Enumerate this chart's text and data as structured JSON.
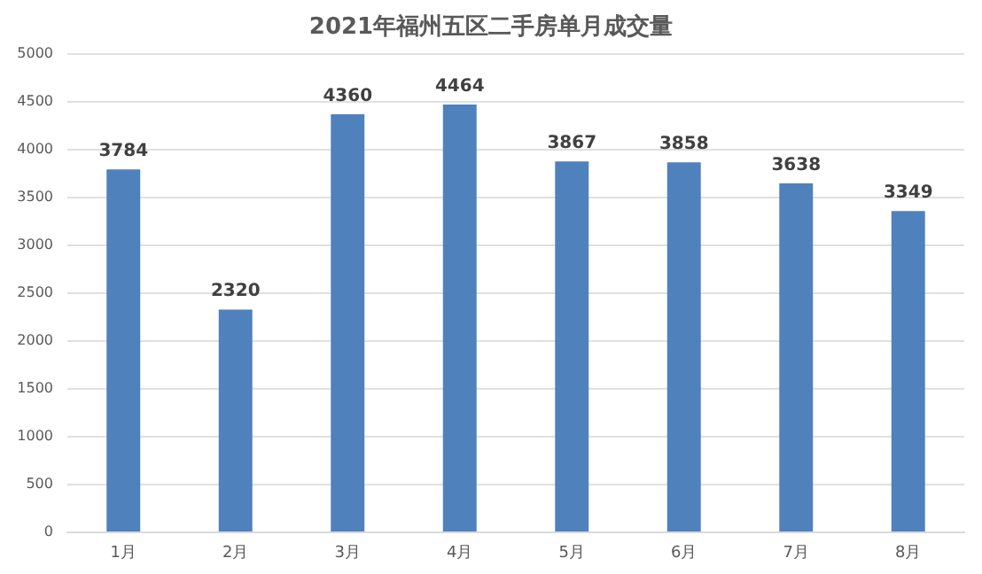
{
  "chart_data": {
    "type": "bar",
    "title": "2021年福州五区二手房单月成交量",
    "categories": [
      "1月",
      "2月",
      "3月",
      "4月",
      "5月",
      "6月",
      "7月",
      "8月"
    ],
    "values": [
      3784,
      2320,
      4360,
      4464,
      3867,
      3858,
      3638,
      3349
    ],
    "color": "#4f81bd",
    "ylim": [
      0,
      5000
    ],
    "yticks": [
      0,
      500,
      1000,
      1500,
      2000,
      2500,
      3000,
      3500,
      4000,
      4500,
      5000
    ],
    "grid": "y",
    "data_labels": true
  }
}
